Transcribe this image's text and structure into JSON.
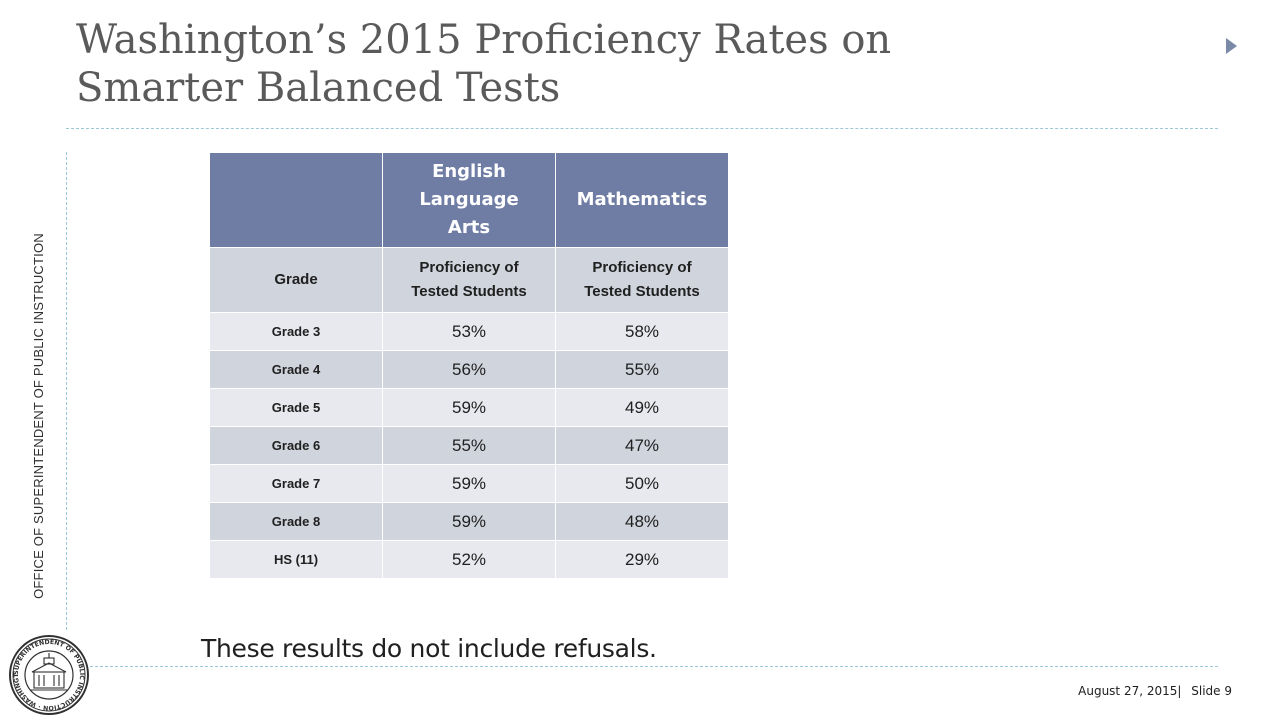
{
  "slide": {
    "title_line1": "Washington’s 2015 Proficiency Rates on",
    "title_line2": "Smarter Balanced Tests",
    "side_label": "OFFICE OF SUPERINTENDENT OF PUBLIC INSTRUCTION",
    "note": "These results do not include refusals.",
    "footer_date": "August 27, 2015|",
    "footer_slide": "Slide 9"
  },
  "seal": {
    "outer_text": "SUPERINTENDENT OF PUBLIC INSTRUCTION · WASHINGTON STATE"
  },
  "table": {
    "header": {
      "blank": "",
      "ela": "English Language Arts",
      "math": "Mathematics"
    },
    "subheader": {
      "grade": "Grade",
      "ela": "Proficiency of Tested Students",
      "math": "Proficiency of Tested Students"
    },
    "rows": [
      {
        "grade": "Grade 3",
        "ela": "53%",
        "math": "58%"
      },
      {
        "grade": "Grade 4",
        "ela": "56%",
        "math": "55%"
      },
      {
        "grade": "Grade 5",
        "ela": "59%",
        "math": "49%"
      },
      {
        "grade": "Grade 6",
        "ela": "55%",
        "math": "47%"
      },
      {
        "grade": "Grade 7",
        "ela": "59%",
        "math": "50%"
      },
      {
        "grade": "Grade 8",
        "ela": "59%",
        "math": "48%"
      },
      {
        "grade": "HS (11)",
        "ela": "52%",
        "math": "29%"
      }
    ]
  },
  "colors": {
    "header_bg": "#6f7da5",
    "band_light": "#e7e9ee",
    "band_dark": "#d0d4dd",
    "divider": "#9cc7d6"
  },
  "icons": [
    "right-triangle-icon",
    "osp-seal-icon"
  ]
}
